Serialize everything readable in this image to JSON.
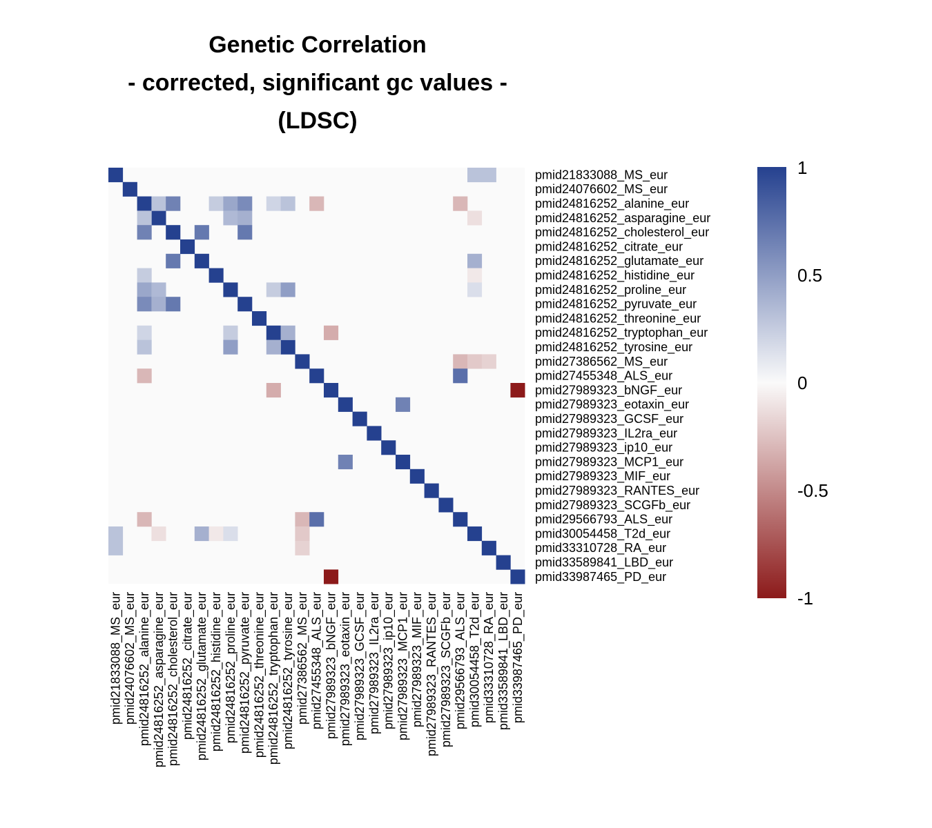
{
  "chart_data": {
    "type": "heatmap",
    "title": [
      "Genetic Correlation",
      "- corrected, significant gc values -",
      "(LDSC)"
    ],
    "labels": [
      "pmid21833088_MS_eur",
      "pmid24076602_MS_eur",
      "pmid24816252_alanine_eur",
      "pmid24816252_asparagine_eur",
      "pmid24816252_cholesterol_eur",
      "pmid24816252_citrate_eur",
      "pmid24816252_glutamate_eur",
      "pmid24816252_histidine_eur",
      "pmid24816252_proline_eur",
      "pmid24816252_pyruvate_eur",
      "pmid24816252_threonine_eur",
      "pmid24816252_tryptophan_eur",
      "pmid24816252_tyrosine_eur",
      "pmid27386562_MS_eur",
      "pmid27455348_ALS_eur",
      "pmid27989323_bNGF_eur",
      "pmid27989323_eotaxin_eur",
      "pmid27989323_GCSF_eur",
      "pmid27989323_IL2ra_eur",
      "pmid27989323_ip10_eur",
      "pmid27989323_MCP1_eur",
      "pmid27989323_MIF_eur",
      "pmid27989323_RANTES_eur",
      "pmid27989323_SCGFb_eur",
      "pmid29566793_ALS_eur",
      "pmid30054458_T2d_eur",
      "pmid33310728_RA_eur",
      "pmid33589841_LBD_eur",
      "pmid33987465_PD_eur"
    ],
    "diagonal": 1,
    "cells": [
      [
        0,
        25,
        0.3
      ],
      [
        0,
        26,
        0.3
      ],
      [
        2,
        3,
        0.3
      ],
      [
        2,
        4,
        0.65
      ],
      [
        2,
        7,
        0.25
      ],
      [
        2,
        8,
        0.45
      ],
      [
        2,
        9,
        0.6
      ],
      [
        2,
        11,
        0.2
      ],
      [
        2,
        12,
        0.3
      ],
      [
        2,
        14,
        -0.3
      ],
      [
        2,
        24,
        -0.3
      ],
      [
        3,
        8,
        0.35
      ],
      [
        3,
        9,
        0.4
      ],
      [
        3,
        25,
        -0.12
      ],
      [
        4,
        6,
        0.7
      ],
      [
        4,
        9,
        0.7
      ],
      [
        6,
        25,
        0.4
      ],
      [
        7,
        25,
        -0.08
      ],
      [
        8,
        11,
        0.25
      ],
      [
        8,
        12,
        0.5
      ],
      [
        8,
        25,
        0.15
      ],
      [
        11,
        12,
        0.4
      ],
      [
        11,
        15,
        -0.35
      ],
      [
        13,
        24,
        -0.3
      ],
      [
        13,
        25,
        -0.22
      ],
      [
        13,
        26,
        -0.18
      ],
      [
        14,
        24,
        0.75
      ],
      [
        15,
        28,
        -1
      ],
      [
        16,
        20,
        0.65
      ]
    ],
    "colorbar": {
      "min": -1,
      "max": 1,
      "ticks": [
        "1",
        "0.5",
        "0",
        "-0.5",
        "-1"
      ],
      "tick_values": [
        1,
        0.5,
        0,
        -0.5,
        -1
      ],
      "high_color": "#25418f",
      "mid_color": "#fafafa",
      "low_color": "#8c1a1a"
    },
    "cell_background": "#fafafa",
    "grid": false
  }
}
